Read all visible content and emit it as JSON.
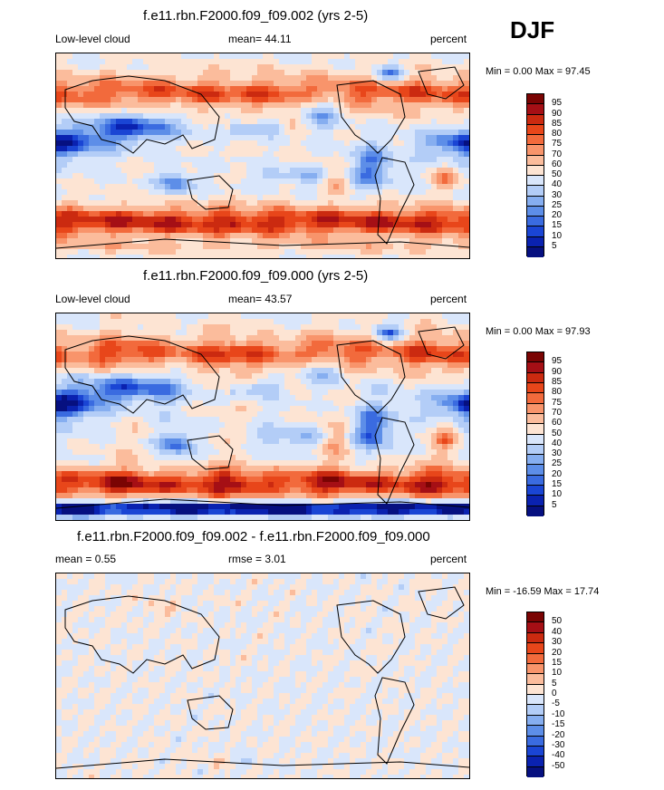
{
  "season": "DJF",
  "panels": [
    {
      "title": "f.e11.rbn.F2000.f09_f09.002 (yrs 2-5)",
      "left_label": "Low-level cloud",
      "center_label": "mean=  44.11",
      "right_label": "percent",
      "minmax": "Min =   0.00 Max =  97.45",
      "colorbar_labels": [
        "95",
        "90",
        "85",
        "80",
        "75",
        "70",
        "60",
        "50",
        "40",
        "30",
        "25",
        "20",
        "15",
        "10",
        "5"
      ],
      "kind": "abs"
    },
    {
      "title": "f.e11.rbn.F2000.f09_f09.000 (yrs 2-5)",
      "left_label": "Low-level cloud",
      "center_label": "mean=  43.57",
      "right_label": "percent",
      "minmax": "Min =   0.00 Max =  97.93",
      "colorbar_labels": [
        "95",
        "90",
        "85",
        "80",
        "75",
        "70",
        "60",
        "50",
        "40",
        "30",
        "25",
        "20",
        "15",
        "10",
        "5"
      ],
      "kind": "abs"
    },
    {
      "title": "f.e11.rbn.F2000.f09_f09.002 - f.e11.rbn.F2000.f09_f09.000",
      "left_label": "mean =   0.55",
      "center_label": "rmse =   3.01",
      "right_label": "percent",
      "minmax": "Min = -16.59 Max =  17.74",
      "colorbar_labels": [
        "50",
        "40",
        "30",
        "20",
        "15",
        "10",
        "5",
        "0",
        "-5",
        "-10",
        "-15",
        "-20",
        "-30",
        "-40",
        "-50"
      ],
      "kind": "diff"
    }
  ],
  "colors": {
    "scale": [
      "#7a0403",
      "#a50f15",
      "#cb2a10",
      "#e8461a",
      "#f26a3c",
      "#f8946b",
      "#fbbc9c",
      "#fde4d3",
      "#d9e6fb",
      "#b3cdf7",
      "#86aef0",
      "#5d8ee8",
      "#3a6be0",
      "#1a45d4",
      "#0a22b0",
      "#061080"
    ]
  },
  "chart_data": [
    {
      "type": "heatmap",
      "title": "f.e11.rbn.F2000.f09_f09.002 (yrs 2-5)",
      "variable": "Low-level cloud",
      "units": "percent",
      "season": "DJF",
      "mean": 44.11,
      "min": 0.0,
      "max": 97.45,
      "contour_levels": [
        5,
        10,
        15,
        20,
        25,
        30,
        40,
        50,
        60,
        70,
        75,
        80,
        85,
        90,
        95
      ]
    },
    {
      "type": "heatmap",
      "title": "f.e11.rbn.F2000.f09_f09.000 (yrs 2-5)",
      "variable": "Low-level cloud",
      "units": "percent",
      "season": "DJF",
      "mean": 43.57,
      "min": 0.0,
      "max": 97.93,
      "contour_levels": [
        5,
        10,
        15,
        20,
        25,
        30,
        40,
        50,
        60,
        70,
        75,
        80,
        85,
        90,
        95
      ]
    },
    {
      "type": "heatmap",
      "title": "f.e11.rbn.F2000.f09_f09.002 - f.e11.rbn.F2000.f09_f09.000",
      "units": "percent",
      "season": "DJF",
      "mean": 0.55,
      "rmse": 3.01,
      "min": -16.59,
      "max": 17.74,
      "contour_levels": [
        -50,
        -40,
        -30,
        -20,
        -15,
        -10,
        -5,
        0,
        5,
        10,
        15,
        20,
        30,
        40,
        50
      ]
    }
  ]
}
